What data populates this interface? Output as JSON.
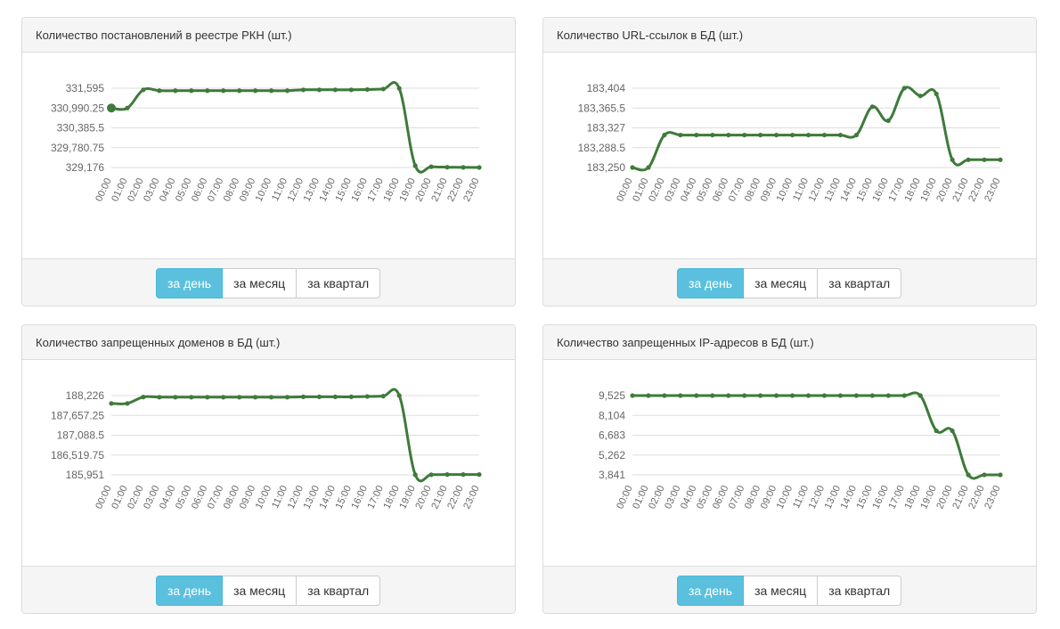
{
  "buttons": [
    "за день",
    "за месяц",
    "за квартал"
  ],
  "colors": {
    "line": "#3e7a3a",
    "grid": "#dddddd",
    "active_button": "#5bc0de",
    "panel_header": "#f5f5f5"
  },
  "hours": [
    "00:00",
    "01:00",
    "02:00",
    "03:00",
    "04:00",
    "05:00",
    "06:00",
    "07:00",
    "08:00",
    "09:00",
    "10:00",
    "11:00",
    "12:00",
    "13:00",
    "14:00",
    "15:00",
    "16:00",
    "17:00",
    "18:00",
    "19:00",
    "20:00",
    "21:00",
    "22:00",
    "23:00"
  ],
  "chart_data": [
    {
      "type": "line",
      "title": "Количество постановлений в реестре РКН (шт.)",
      "x": [
        "00:00",
        "01:00",
        "02:00",
        "03:00",
        "04:00",
        "05:00",
        "06:00",
        "07:00",
        "08:00",
        "09:00",
        "10:00",
        "11:00",
        "12:00",
        "13:00",
        "14:00",
        "15:00",
        "16:00",
        "17:00",
        "18:00",
        "19:00",
        "20:00",
        "21:00",
        "22:00",
        "23:00"
      ],
      "yticks": [
        "331,595",
        "330,990.25",
        "330,385.5",
        "329,780.75",
        "329,176"
      ],
      "ylim": [
        329176,
        331595
      ],
      "values": [
        330990,
        330990,
        331545,
        331520,
        331520,
        331520,
        331520,
        331520,
        331520,
        331520,
        331520,
        331520,
        331545,
        331545,
        331545,
        331545,
        331555,
        331570,
        331590,
        329230,
        329200,
        329185,
        329180,
        329176
      ]
    },
    {
      "type": "line",
      "title": "Количество URL-ссылок в БД (шт.)",
      "x": [
        "00:00",
        "01:00",
        "02:00",
        "03:00",
        "04:00",
        "05:00",
        "06:00",
        "07:00",
        "08:00",
        "09:00",
        "10:00",
        "11:00",
        "12:00",
        "13:00",
        "14:00",
        "15:00",
        "16:00",
        "17:00",
        "18:00",
        "19:00",
        "20:00",
        "21:00",
        "22:00",
        "23:00"
      ],
      "yticks": [
        "183,404",
        "183,365.5",
        "183,327",
        "183,288.5",
        "183,250"
      ],
      "ylim": [
        183250,
        183404
      ],
      "values": [
        183250,
        183250,
        183313,
        183313,
        183313,
        183313,
        183313,
        183313,
        183313,
        183313,
        183313,
        183313,
        183313,
        183313,
        183313,
        183368,
        183341,
        183404,
        183389,
        183393,
        183265,
        183265,
        183265,
        183265
      ]
    },
    {
      "type": "line",
      "title": "Количество запрещенных доменов в БД (шт.)",
      "x": [
        "00:00",
        "01:00",
        "02:00",
        "03:00",
        "04:00",
        "05:00",
        "06:00",
        "07:00",
        "08:00",
        "09:00",
        "10:00",
        "11:00",
        "12:00",
        "13:00",
        "14:00",
        "15:00",
        "16:00",
        "17:00",
        "18:00",
        "19:00",
        "20:00",
        "21:00",
        "22:00",
        "23:00"
      ],
      "yticks": [
        "188,226",
        "187,657.25",
        "187,088.5",
        "186,519.75",
        "185,951"
      ],
      "ylim": [
        185951,
        188226
      ],
      "values": [
        188000,
        188000,
        188185,
        188180,
        188180,
        188180,
        188180,
        188180,
        188180,
        188180,
        188180,
        188180,
        188190,
        188190,
        188190,
        188190,
        188200,
        188210,
        188226,
        185955,
        185955,
        185960,
        185960,
        185960
      ]
    },
    {
      "type": "line",
      "title": "Количество запрещенных IP-адресов в БД (шт.)",
      "x": [
        "00:00",
        "01:00",
        "02:00",
        "03:00",
        "04:00",
        "05:00",
        "06:00",
        "07:00",
        "08:00",
        "09:00",
        "10:00",
        "11:00",
        "12:00",
        "13:00",
        "14:00",
        "15:00",
        "16:00",
        "17:00",
        "18:00",
        "19:00",
        "20:00",
        "21:00",
        "22:00",
        "23:00"
      ],
      "yticks": [
        "9,525",
        "8,104",
        "6,683",
        "5,262",
        "3,841"
      ],
      "ylim": [
        3841,
        9525
      ],
      "values": [
        9525,
        9525,
        9525,
        9525,
        9525,
        9525,
        9525,
        9525,
        9525,
        9525,
        9525,
        9525,
        9525,
        9525,
        9525,
        9525,
        9525,
        9525,
        9525,
        7000,
        7000,
        3841,
        3841,
        3841
      ]
    }
  ]
}
